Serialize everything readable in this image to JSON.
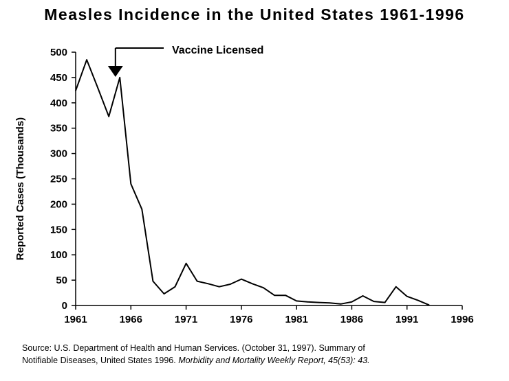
{
  "title": "Measles Incidence in the United States 1961-1996",
  "chart_data": {
    "type": "line",
    "title": "Measles Incidence in the United States 1961-1996",
    "xlabel": "",
    "ylabel": "Reported Cases (Thousands)",
    "xlim": [
      1961,
      1996
    ],
    "ylim": [
      0,
      500
    ],
    "x_ticks": [
      "1961",
      "1966",
      "1971",
      "1976",
      "1981",
      "1986",
      "1991",
      "1996"
    ],
    "y_ticks": [
      "0",
      "50",
      "100",
      "150",
      "200",
      "250",
      "300",
      "350",
      "400",
      "450",
      "500"
    ],
    "grid": false,
    "series": [
      {
        "name": "",
        "x": [
          1961,
          1962,
          1963,
          1964,
          1965,
          1966,
          1967,
          1968,
          1969,
          1970,
          1971,
          1972,
          1973,
          1974,
          1975,
          1976,
          1977,
          1978,
          1979,
          1980,
          1981,
          1982,
          1983,
          1984,
          1985,
          1986,
          1987,
          1988,
          1989,
          1990,
          1991,
          1992,
          1993
        ],
        "y": [
          424,
          485,
          430,
          373,
          450,
          240,
          190,
          48,
          23,
          37,
          83,
          48,
          43,
          37,
          42,
          52,
          43,
          35,
          20,
          20,
          9,
          7,
          6,
          5,
          3,
          7,
          19,
          8,
          6,
          37,
          18,
          10,
          1
        ]
      }
    ],
    "annotations": [
      {
        "text": "Vaccine Licensed",
        "x": 1964.6
      }
    ]
  },
  "source": {
    "line1": "Source: U.S. Department of Health and Human Services. (October 31, 1997). Summary of",
    "line2_plain": "Notifiable Diseases, United States 1996.",
    "line2_italic": "Morbidity and Mortality Weekly Report, 45(53): 43."
  }
}
